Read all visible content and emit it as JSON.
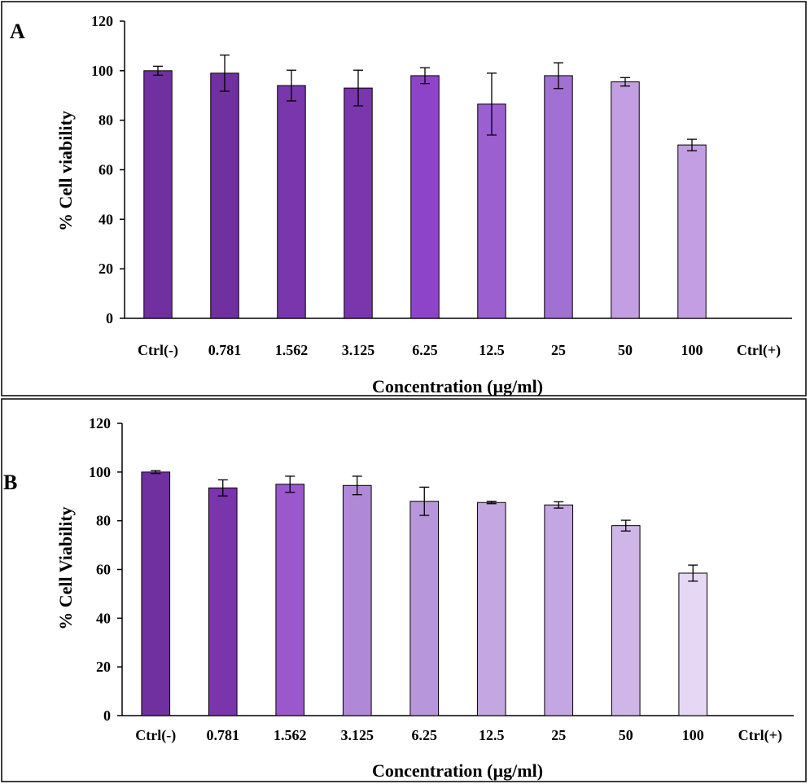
{
  "chart_data": [
    {
      "type": "bar",
      "panel_label": "A",
      "title": "",
      "xlabel": "Concentration (µg/ml)",
      "ylabel": "% Cell viability",
      "ylim": [
        0,
        120
      ],
      "yticks": [
        0,
        20,
        40,
        60,
        80,
        100,
        120
      ],
      "categories": [
        "Ctrl(-)",
        "0.781",
        "1.562",
        "3.125",
        "6.25",
        "12.5",
        "25",
        "50",
        "100",
        "Ctrl(+)"
      ],
      "values": [
        100,
        99,
        94,
        93,
        98,
        86.5,
        98,
        95.5,
        70,
        0
      ],
      "errors": [
        1.8,
        7.3,
        6.2,
        7.2,
        3.2,
        12.5,
        5.2,
        1.7,
        2.3,
        0
      ],
      "colors": [
        "#7030a0",
        "#7030a0",
        "#7a36ad",
        "#7a36ad",
        "#8e44c8",
        "#9b5fd0",
        "#a070d2",
        "#c49ee2",
        "#c49ee2",
        "#c49ee2"
      ],
      "grid": false,
      "legend": "none"
    },
    {
      "type": "bar",
      "panel_label": "B",
      "title": "",
      "xlabel": "Concentration (µg/ml)",
      "ylabel": "% Cell Viability",
      "ylim": [
        0,
        120
      ],
      "yticks": [
        0,
        20,
        40,
        60,
        80,
        100,
        120
      ],
      "categories": [
        "Ctrl(-)",
        "0.781",
        "1.562",
        "3.125",
        "6.25",
        "12.5",
        "25",
        "50",
        "100",
        "Ctrl(+)"
      ],
      "values": [
        100,
        93.5,
        95,
        94.5,
        88,
        87.5,
        86.5,
        78,
        58.5,
        0
      ],
      "errors": [
        0.6,
        3.3,
        3.3,
        3.8,
        5.8,
        0.5,
        1.3,
        2.2,
        3.3,
        0
      ],
      "colors": [
        "#7030a0",
        "#7a34ac",
        "#9a58cc",
        "#b088d8",
        "#b896dc",
        "#c4a6e2",
        "#c4a6e2",
        "#d0b6e8",
        "#e6d8f4",
        "#e6d8f4"
      ],
      "grid": false,
      "legend": "none"
    }
  ]
}
